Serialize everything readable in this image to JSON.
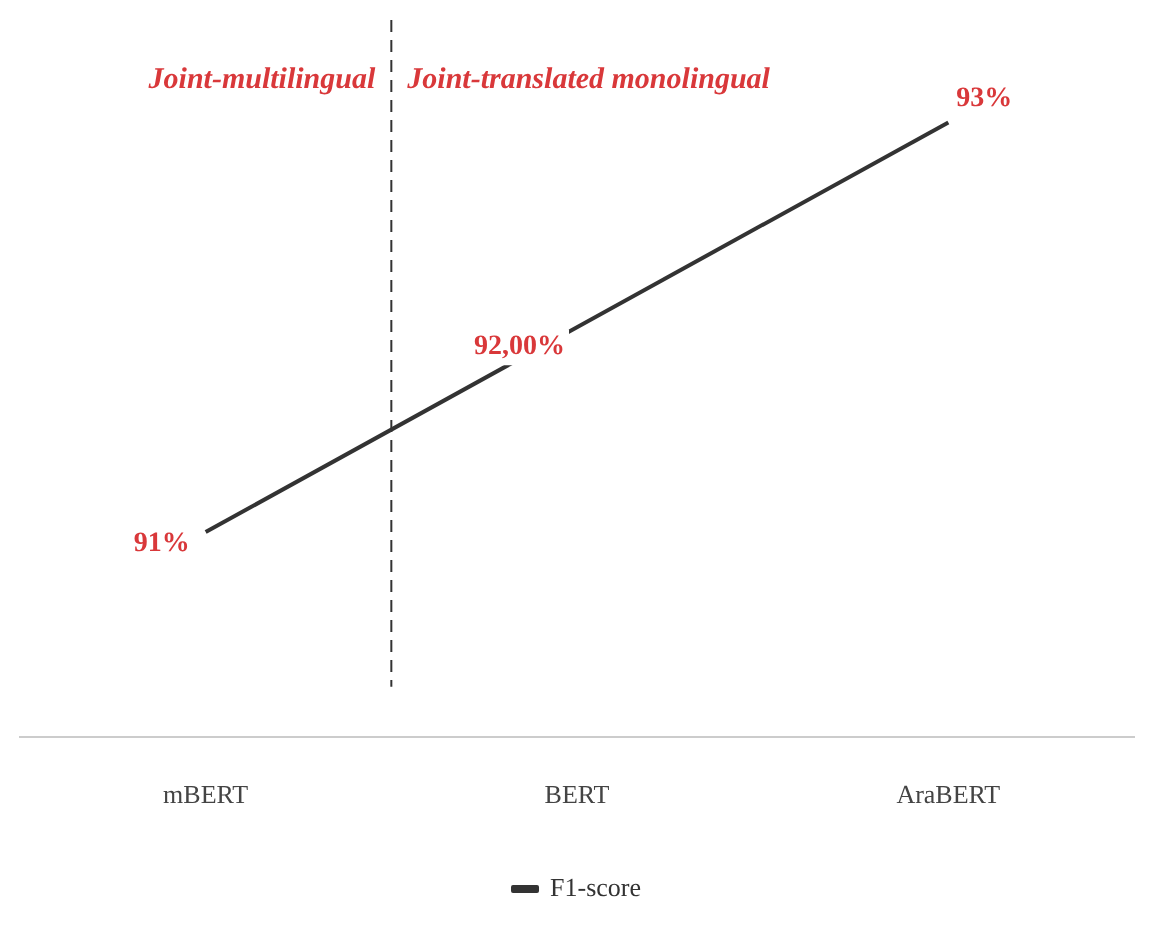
{
  "chart_data": {
    "type": "line",
    "categories": [
      "mBERT",
      "BERT",
      "AraBERT"
    ],
    "series": [
      {
        "name": "F1-score",
        "color": "#333333",
        "values": [
          91,
          92,
          93
        ],
        "value_labels": [
          "91%",
          "92,00%",
          "93%"
        ]
      }
    ],
    "ylim": [
      90,
      93.5
    ],
    "annotations": [
      "Joint-multilingual",
      "Joint-translated monolingual"
    ],
    "grid": false,
    "legend": "bottom",
    "marker": "none",
    "line_style": "solid",
    "tick_labels": "x"
  }
}
